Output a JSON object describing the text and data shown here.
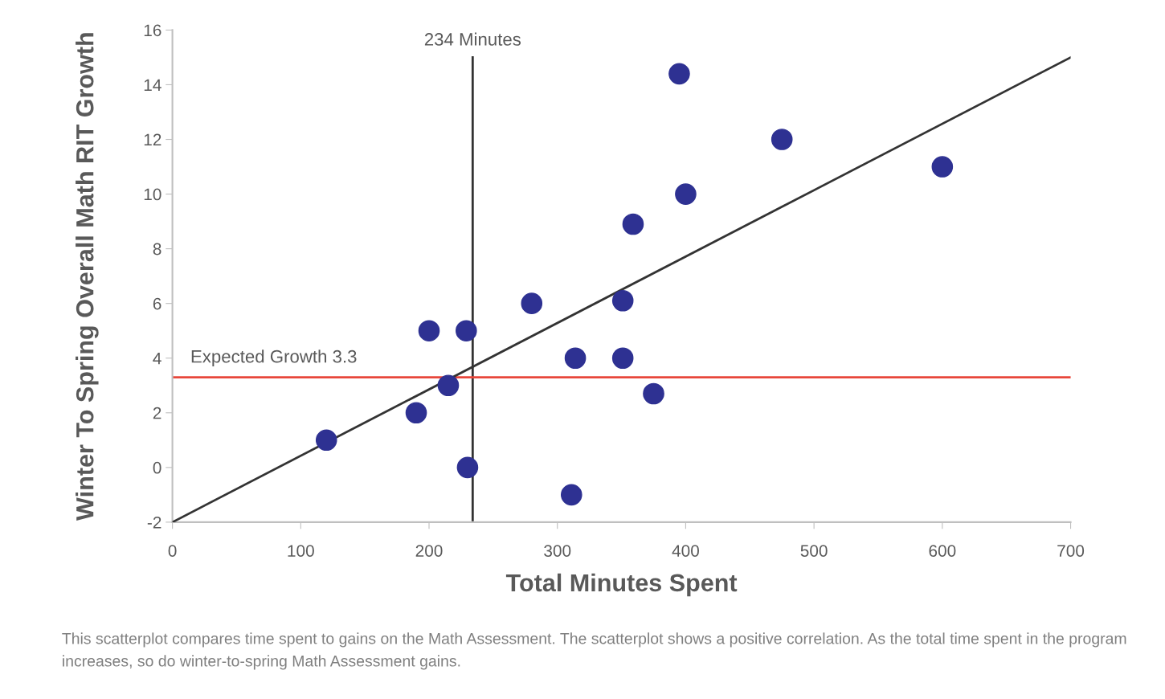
{
  "chart_data": {
    "type": "scatter",
    "xlabel": "Total Minutes Spent",
    "ylabel": "Winter To Spring Overall Math RIT Growth",
    "series": [
      {
        "color": "#2e3192",
        "marker": "circle",
        "x": [
          120,
          190,
          200,
          215,
          229,
          230,
          280,
          311,
          314,
          351,
          351,
          359,
          375,
          395,
          400,
          475,
          600
        ],
        "values": [
          1,
          2,
          5,
          3,
          5,
          0,
          6,
          -1,
          4,
          6.1,
          4,
          8.9,
          2.7,
          14.4,
          10,
          12,
          11
        ]
      },
      {
        "type": "line",
        "color": "#333333",
        "x": [
          0,
          700
        ],
        "values": [
          -2,
          15
        ]
      }
    ],
    "xlim": [
      0,
      700
    ],
    "xticks": [
      0,
      100,
      200,
      300,
      400,
      500,
      600,
      700
    ],
    "ylim": [
      -2,
      16
    ],
    "yticks": [
      -2,
      0,
      2,
      4,
      6,
      8,
      10,
      12,
      14,
      16
    ],
    "ref_lines": [
      {
        "axis": "x",
        "value": 234,
        "label": "234 Minutes",
        "color": "#333333"
      },
      {
        "axis": "y",
        "value": 3.3,
        "label": "Expected Growth 3.3",
        "color": "#e8473b"
      }
    ],
    "grid": false,
    "legend": false,
    "annotations": [
      "This scatterplot compares time spent to gains on the Math Assessment. The scatterplot shows a positive correlation. As the total time spent in the program increases, so do winter-to-spring Math Assessment gains."
    ]
  }
}
